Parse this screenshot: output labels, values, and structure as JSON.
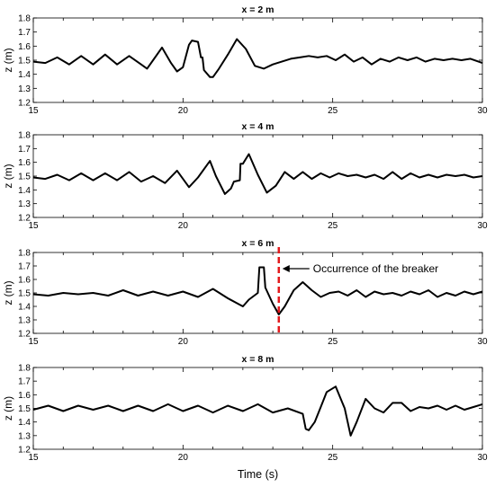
{
  "chart_data": [
    {
      "type": "line",
      "title": "x = 2 m",
      "ylabel": "z (m)",
      "xlim": [
        15,
        30
      ],
      "ylim": [
        1.2,
        1.8
      ],
      "xticks": [
        15,
        20,
        25,
        30
      ],
      "yticks": [
        1.2,
        1.3,
        1.4,
        1.5,
        1.6,
        1.7,
        1.8
      ],
      "series": [
        {
          "x": [
            15.0,
            15.4,
            15.8,
            16.2,
            16.6,
            17.0,
            17.4,
            17.8,
            18.2,
            18.6,
            18.8,
            19.0,
            19.3,
            19.6,
            19.8,
            20.0,
            20.2,
            20.3,
            20.5,
            20.6,
            20.65,
            20.7,
            20.9,
            21.0,
            21.2,
            21.5,
            21.8,
            22.1,
            22.4,
            22.7,
            23.0,
            23.3,
            23.6,
            23.9,
            24.2,
            24.5,
            24.8,
            25.1,
            25.4,
            25.7,
            26.0,
            26.3,
            26.6,
            26.9,
            27.2,
            27.5,
            27.8,
            28.1,
            28.4,
            28.7,
            29.0,
            29.3,
            29.6,
            30.0
          ],
          "y": [
            1.49,
            1.48,
            1.52,
            1.47,
            1.53,
            1.47,
            1.54,
            1.47,
            1.53,
            1.47,
            1.44,
            1.5,
            1.59,
            1.48,
            1.42,
            1.45,
            1.61,
            1.64,
            1.63,
            1.52,
            1.52,
            1.43,
            1.38,
            1.38,
            1.44,
            1.54,
            1.65,
            1.58,
            1.46,
            1.44,
            1.47,
            1.49,
            1.51,
            1.52,
            1.53,
            1.52,
            1.53,
            1.5,
            1.54,
            1.49,
            1.52,
            1.47,
            1.51,
            1.49,
            1.52,
            1.5,
            1.52,
            1.49,
            1.51,
            1.5,
            1.51,
            1.5,
            1.51,
            1.48
          ]
        }
      ]
    },
    {
      "type": "line",
      "title": "x = 4 m",
      "ylabel": "z (m)",
      "xlim": [
        15,
        30
      ],
      "ylim": [
        1.2,
        1.8
      ],
      "xticks": [
        15,
        20,
        25,
        30
      ],
      "yticks": [
        1.2,
        1.3,
        1.4,
        1.5,
        1.6,
        1.7,
        1.8
      ],
      "series": [
        {
          "x": [
            15.0,
            15.4,
            15.8,
            16.2,
            16.6,
            17.0,
            17.4,
            17.8,
            18.2,
            18.6,
            19.0,
            19.4,
            19.8,
            20.2,
            20.5,
            20.9,
            21.1,
            21.4,
            21.6,
            21.7,
            21.9,
            21.92,
            22.0,
            22.2,
            22.5,
            22.8,
            23.1,
            23.4,
            23.7,
            24.0,
            24.3,
            24.6,
            24.9,
            25.2,
            25.5,
            25.8,
            26.1,
            26.4,
            26.7,
            27.0,
            27.3,
            27.6,
            27.9,
            28.2,
            28.5,
            28.8,
            29.1,
            29.4,
            29.7,
            30.0
          ],
          "y": [
            1.49,
            1.48,
            1.51,
            1.47,
            1.52,
            1.47,
            1.52,
            1.47,
            1.53,
            1.46,
            1.5,
            1.45,
            1.54,
            1.42,
            1.49,
            1.61,
            1.5,
            1.37,
            1.41,
            1.46,
            1.47,
            1.59,
            1.59,
            1.66,
            1.51,
            1.38,
            1.43,
            1.53,
            1.48,
            1.53,
            1.48,
            1.52,
            1.49,
            1.52,
            1.5,
            1.51,
            1.49,
            1.51,
            1.48,
            1.53,
            1.48,
            1.52,
            1.49,
            1.51,
            1.49,
            1.51,
            1.5,
            1.51,
            1.49,
            1.5
          ]
        }
      ]
    },
    {
      "type": "line",
      "title": "x = 6 m",
      "ylabel": "z (m)",
      "xlim": [
        15,
        30
      ],
      "ylim": [
        1.2,
        1.8
      ],
      "xticks": [
        15,
        20,
        25,
        30
      ],
      "yticks": [
        1.2,
        1.3,
        1.4,
        1.5,
        1.6,
        1.7,
        1.8
      ],
      "annotation": {
        "text": "Occurrence of the breaker",
        "x": 23.2,
        "color": "#e3191c"
      },
      "series": [
        {
          "x": [
            15.0,
            15.5,
            16.0,
            16.5,
            17.0,
            17.5,
            18.0,
            18.5,
            19.0,
            19.5,
            20.0,
            20.5,
            21.0,
            21.5,
            22.0,
            22.2,
            22.5,
            22.55,
            22.7,
            22.75,
            23.0,
            23.2,
            23.4,
            23.7,
            24.0,
            24.3,
            24.6,
            24.9,
            25.2,
            25.5,
            25.8,
            26.1,
            26.4,
            26.7,
            27.0,
            27.3,
            27.6,
            27.9,
            28.2,
            28.5,
            28.8,
            29.1,
            29.4,
            29.7,
            30.0
          ],
          "y": [
            1.49,
            1.48,
            1.5,
            1.49,
            1.5,
            1.48,
            1.52,
            1.48,
            1.51,
            1.48,
            1.51,
            1.47,
            1.53,
            1.46,
            1.4,
            1.45,
            1.5,
            1.69,
            1.69,
            1.54,
            1.42,
            1.34,
            1.4,
            1.52,
            1.58,
            1.52,
            1.47,
            1.5,
            1.51,
            1.48,
            1.52,
            1.47,
            1.51,
            1.49,
            1.5,
            1.48,
            1.51,
            1.49,
            1.52,
            1.47,
            1.5,
            1.48,
            1.51,
            1.49,
            1.51
          ]
        }
      ]
    },
    {
      "type": "line",
      "title": "x = 8 m",
      "ylabel": "z (m)",
      "xlabel": "Time (s)",
      "xlim": [
        15,
        30
      ],
      "ylim": [
        1.2,
        1.8
      ],
      "xticks": [
        15,
        20,
        25,
        30
      ],
      "yticks": [
        1.2,
        1.3,
        1.4,
        1.5,
        1.6,
        1.7,
        1.8
      ],
      "series": [
        {
          "x": [
            15.0,
            15.5,
            16.0,
            16.5,
            17.0,
            17.5,
            18.0,
            18.5,
            19.0,
            19.5,
            20.0,
            20.5,
            21.0,
            21.5,
            22.0,
            22.5,
            23.0,
            23.5,
            24.0,
            24.1,
            24.2,
            24.4,
            24.6,
            24.8,
            25.1,
            25.4,
            25.6,
            25.8,
            26.1,
            26.4,
            26.7,
            27.0,
            27.3,
            27.6,
            27.9,
            28.2,
            28.5,
            28.8,
            29.1,
            29.4,
            29.7,
            30.0
          ],
          "y": [
            1.49,
            1.52,
            1.48,
            1.52,
            1.49,
            1.52,
            1.48,
            1.52,
            1.48,
            1.53,
            1.48,
            1.52,
            1.47,
            1.52,
            1.48,
            1.53,
            1.47,
            1.5,
            1.46,
            1.35,
            1.34,
            1.4,
            1.51,
            1.62,
            1.66,
            1.5,
            1.3,
            1.4,
            1.57,
            1.5,
            1.47,
            1.54,
            1.54,
            1.48,
            1.51,
            1.5,
            1.52,
            1.49,
            1.52,
            1.49,
            1.51,
            1.53
          ]
        }
      ]
    }
  ]
}
